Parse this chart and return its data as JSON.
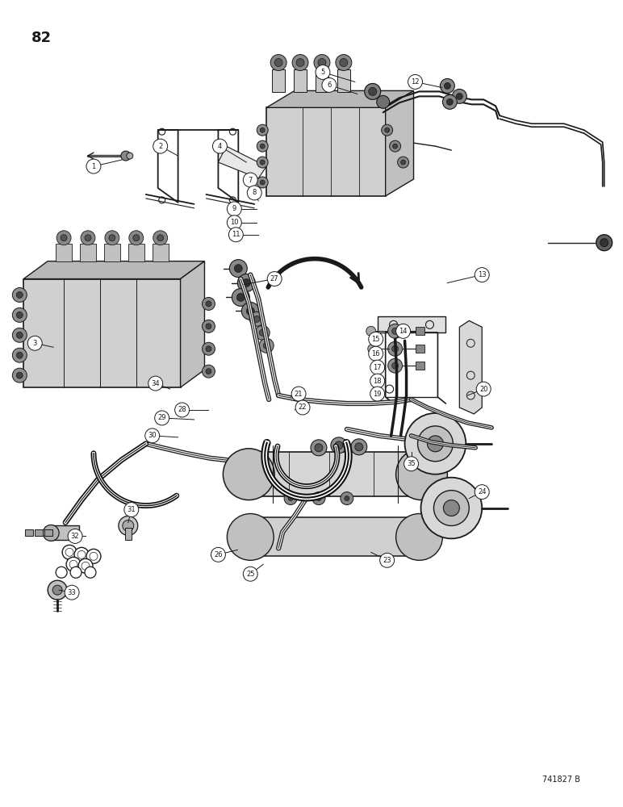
{
  "page_number": "82",
  "part_number_label": "741827 B",
  "background_color": "#ffffff",
  "line_color": "#1a1a1a",
  "figsize": [
    7.72,
    10.0
  ],
  "dpi": 100
}
